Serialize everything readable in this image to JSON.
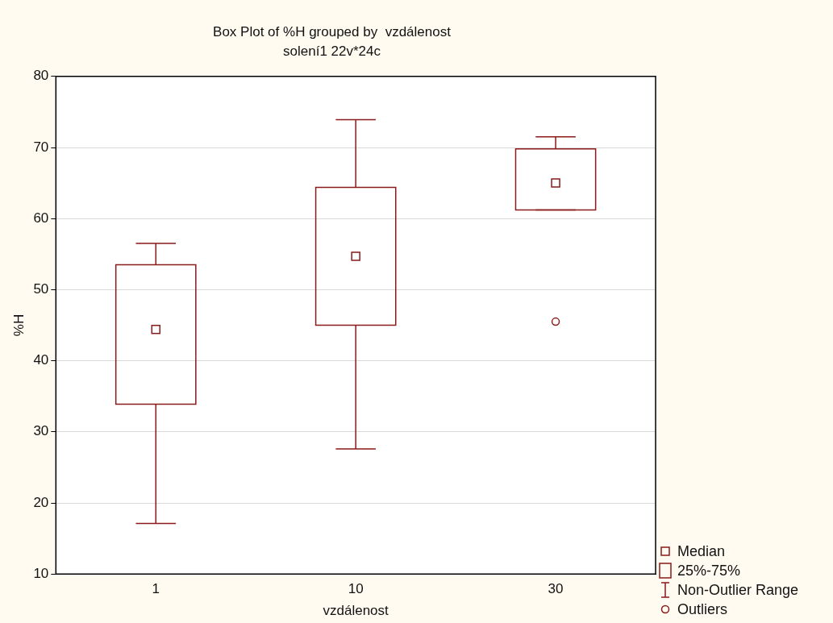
{
  "chart_data": {
    "type": "box",
    "title": "Box Plot of %H grouped by  vzdálenost",
    "subtitle": "solení1 22v*24c",
    "xlabel": "vzdálenost",
    "ylabel": "%H",
    "categories": [
      "1",
      "10",
      "30"
    ],
    "color": "#8b1a1a",
    "boxes": [
      {
        "low": 17.1,
        "q1": 33.9,
        "median": 44.4,
        "q3": 53.5,
        "high": 56.5
      },
      {
        "low": 27.6,
        "q1": 45.0,
        "median": 54.7,
        "q3": 64.4,
        "high": 73.9
      },
      {
        "low": 61.2,
        "q1": 61.2,
        "median": 65.0,
        "q3": 69.8,
        "high": 71.5,
        "outliers": [
          45.5
        ]
      }
    ],
    "ylim": [
      10,
      80
    ],
    "yticks": [
      10,
      20,
      30,
      40,
      50,
      60,
      70,
      80
    ],
    "grid": "y",
    "annotations": [
      "Median",
      "25%-75%",
      "Non-Outlier Range",
      "Outliers"
    ]
  }
}
